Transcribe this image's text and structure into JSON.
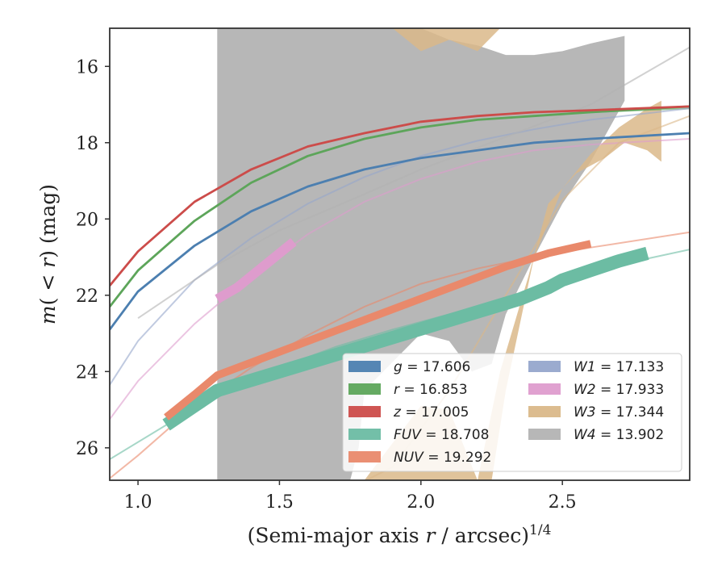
{
  "chart_data": {
    "type": "line",
    "title": "",
    "xlabel": "(Semi-major axis r / arcsec)",
    "xlabel_parts": {
      "pre": "(Semi-major axis ",
      "var": "r",
      "post": " / arcsec)",
      "sup": "1/4"
    },
    "ylabel": "m(< r) (mag)",
    "ylabel_parts": {
      "var": "m",
      "open": "(",
      "mid": " < ",
      "var2": "r",
      "close": ")",
      "unit": " (mag)"
    },
    "xlim": [
      0.9,
      2.95
    ],
    "ylim": [
      26.85,
      15.0
    ],
    "y_inverted": true,
    "xticks": [
      1.0,
      1.5,
      2.0,
      2.5
    ],
    "xtick_labels": [
      "1.0",
      "1.5",
      "2.0",
      "2.5"
    ],
    "yticks": [
      16,
      18,
      20,
      22,
      24,
      26
    ],
    "ytick_labels": [
      "16",
      "18",
      "20",
      "22",
      "24",
      "26"
    ],
    "grid": false,
    "legend_position": "lower-right",
    "series": [
      {
        "band": "g",
        "value": "17.606",
        "color": "#4c7fb0",
        "model": [
          [
            0.9,
            22.9
          ],
          [
            1.0,
            21.9
          ],
          [
            1.2,
            20.7
          ],
          [
            1.4,
            19.8
          ],
          [
            1.6,
            19.15
          ],
          [
            1.8,
            18.7
          ],
          [
            2.0,
            18.4
          ],
          [
            2.2,
            18.2
          ],
          [
            2.4,
            18.0
          ],
          [
            2.6,
            17.9
          ],
          [
            2.95,
            17.75
          ]
        ],
        "data": [
          [
            0.9,
            22.9
          ],
          [
            1.0,
            21.9
          ],
          [
            1.2,
            20.7
          ],
          [
            1.4,
            19.8
          ],
          [
            1.6,
            19.15
          ],
          [
            1.8,
            18.7
          ],
          [
            2.0,
            18.4
          ],
          [
            2.2,
            18.2
          ],
          [
            2.4,
            18.0
          ],
          [
            2.6,
            17.9
          ],
          [
            2.95,
            17.75
          ]
        ],
        "data_width": 0.06
      },
      {
        "band": "r",
        "value": "16.853",
        "color": "#5da55a",
        "model": [
          [
            0.9,
            22.3
          ],
          [
            1.0,
            21.35
          ],
          [
            1.2,
            20.05
          ],
          [
            1.4,
            19.05
          ],
          [
            1.6,
            18.35
          ],
          [
            1.8,
            17.9
          ],
          [
            2.0,
            17.6
          ],
          [
            2.2,
            17.4
          ],
          [
            2.4,
            17.3
          ],
          [
            2.6,
            17.2
          ],
          [
            2.95,
            17.1
          ]
        ],
        "data": [
          [
            0.9,
            22.3
          ],
          [
            1.0,
            21.35
          ],
          [
            1.2,
            20.05
          ],
          [
            1.4,
            19.05
          ],
          [
            1.6,
            18.35
          ],
          [
            1.8,
            17.9
          ],
          [
            2.0,
            17.6
          ],
          [
            2.2,
            17.4
          ],
          [
            2.4,
            17.3
          ],
          [
            2.6,
            17.2
          ],
          [
            2.95,
            17.05
          ]
        ],
        "data_width": 0.06
      },
      {
        "band": "z",
        "value": "17.005",
        "color": "#cc4c4a",
        "model": [
          [
            0.9,
            21.75
          ],
          [
            1.0,
            20.85
          ],
          [
            1.2,
            19.55
          ],
          [
            1.4,
            18.7
          ],
          [
            1.6,
            18.1
          ],
          [
            1.8,
            17.75
          ],
          [
            2.0,
            17.45
          ],
          [
            2.2,
            17.3
          ],
          [
            2.4,
            17.2
          ],
          [
            2.6,
            17.15
          ],
          [
            2.95,
            17.05
          ]
        ],
        "data": [
          [
            0.9,
            21.75
          ],
          [
            1.0,
            20.85
          ],
          [
            1.2,
            19.55
          ],
          [
            1.4,
            18.7
          ],
          [
            1.6,
            18.1
          ],
          [
            1.8,
            17.75
          ],
          [
            2.0,
            17.45
          ],
          [
            2.2,
            17.3
          ],
          [
            2.4,
            17.2
          ],
          [
            2.6,
            17.15
          ],
          [
            2.95,
            17.05
          ]
        ],
        "data_width": 0.06
      },
      {
        "band": "FUV",
        "value": "18.708",
        "color": "#6cbca3",
        "model": [
          [
            0.9,
            26.3
          ],
          [
            1.1,
            25.4
          ],
          [
            1.3,
            24.6
          ],
          [
            1.5,
            23.9
          ],
          [
            1.7,
            23.35
          ],
          [
            1.9,
            22.9
          ],
          [
            2.1,
            22.5
          ],
          [
            2.3,
            22.1
          ],
          [
            2.5,
            21.6
          ],
          [
            2.7,
            21.2
          ],
          [
            2.95,
            20.8
          ]
        ],
        "data": [
          [
            1.1,
            25.4
          ],
          [
            1.2,
            24.9
          ],
          [
            1.28,
            24.5
          ],
          [
            2.35,
            22.1
          ],
          [
            2.45,
            21.8
          ],
          [
            2.5,
            21.6
          ],
          [
            2.6,
            21.35
          ],
          [
            2.7,
            21.1
          ],
          [
            2.8,
            20.9
          ]
        ],
        "data_width": 0.35
      },
      {
        "band": "NUV",
        "value": "19.292",
        "color": "#e9896b",
        "model": [
          [
            0.9,
            26.8
          ],
          [
            1.0,
            26.2
          ],
          [
            1.2,
            24.9
          ],
          [
            1.4,
            23.9
          ],
          [
            1.6,
            23.05
          ],
          [
            1.8,
            22.3
          ],
          [
            2.0,
            21.7
          ],
          [
            2.2,
            21.3
          ],
          [
            2.4,
            21.0
          ],
          [
            2.6,
            20.75
          ],
          [
            2.95,
            20.35
          ]
        ],
        "data": [
          [
            1.1,
            25.2
          ],
          [
            1.2,
            24.6
          ],
          [
            1.28,
            24.1
          ],
          [
            2.3,
            21.25
          ],
          [
            2.45,
            20.9
          ],
          [
            2.6,
            20.65
          ]
        ],
        "data_width": 0.2
      },
      {
        "band": "W1",
        "value": "17.133",
        "color": "#96a7cc",
        "model": [
          [
            0.9,
            24.35
          ],
          [
            1.0,
            23.2
          ],
          [
            1.2,
            21.6
          ],
          [
            1.4,
            20.5
          ],
          [
            1.6,
            19.6
          ],
          [
            1.8,
            18.9
          ],
          [
            2.0,
            18.35
          ],
          [
            2.2,
            17.95
          ],
          [
            2.4,
            17.65
          ],
          [
            2.6,
            17.4
          ],
          [
            2.95,
            17.1
          ]
        ],
        "data": [],
        "data_width": 0
      },
      {
        "band": "W2",
        "value": "17.933",
        "color": "#de9ccd",
        "model": [
          [
            0.9,
            25.25
          ],
          [
            1.0,
            24.25
          ],
          [
            1.2,
            22.75
          ],
          [
            1.4,
            21.5
          ],
          [
            1.6,
            20.4
          ],
          [
            1.8,
            19.55
          ],
          [
            2.0,
            18.95
          ],
          [
            2.2,
            18.5
          ],
          [
            2.4,
            18.2
          ],
          [
            2.6,
            18.05
          ],
          [
            2.95,
            17.9
          ]
        ],
        "data": [
          [
            1.28,
            22.1
          ],
          [
            1.35,
            21.8
          ],
          [
            1.45,
            21.2
          ],
          [
            1.55,
            20.6
          ]
        ],
        "data_width": 0.25
      },
      {
        "band": "W3",
        "value": "17.344",
        "color": "#dab889",
        "model": [
          [
            0.9,
            29.0
          ],
          [
            1.5,
            28.0
          ],
          [
            1.9,
            26.5
          ],
          [
            2.1,
            24.5
          ],
          [
            2.3,
            22.0
          ],
          [
            2.5,
            19.5
          ],
          [
            2.7,
            18.0
          ],
          [
            2.95,
            17.3
          ]
        ],
        "data_lower": [
          [
            1.8,
            26.85
          ],
          [
            2.0,
            24.9
          ],
          [
            2.1,
            25.0
          ],
          [
            2.2,
            26.85
          ]
        ],
        "data_upper": [
          [
            2.25,
            26.85
          ],
          [
            2.3,
            24.5
          ],
          [
            2.4,
            21.0
          ],
          [
            2.5,
            19.2
          ],
          [
            2.6,
            18.3
          ],
          [
            2.7,
            17.6
          ],
          [
            2.8,
            17.1
          ],
          [
            2.85,
            16.9
          ]
        ],
        "shade_lower": [
          [
            2.2,
            26.85
          ],
          [
            2.28,
            24.0
          ],
          [
            2.38,
            21.5
          ],
          [
            2.45,
            19.6
          ],
          [
            2.55,
            18.8
          ],
          [
            2.65,
            18.4
          ],
          [
            2.72,
            18.0
          ],
          [
            2.8,
            18.2
          ],
          [
            2.85,
            18.5
          ]
        ]
      },
      {
        "band": "W4",
        "value": "13.902",
        "color": "#b3b3b3",
        "model": [
          [
            1.0,
            22.6
          ],
          [
            1.28,
            21.2
          ],
          [
            1.5,
            20.3
          ],
          [
            1.8,
            19.35
          ],
          [
            2.0,
            18.7
          ],
          [
            2.3,
            17.85
          ],
          [
            2.6,
            17.0
          ],
          [
            2.95,
            15.5
          ]
        ],
        "upper": [
          [
            1.28,
            15.0
          ],
          [
            1.75,
            15.0
          ],
          [
            2.0,
            15.0
          ],
          [
            2.1,
            15.3
          ],
          [
            2.2,
            15.45
          ],
          [
            2.3,
            15.7
          ],
          [
            2.4,
            15.7
          ],
          [
            2.5,
            15.6
          ],
          [
            2.6,
            15.4
          ],
          [
            2.72,
            15.2
          ]
        ],
        "lower": [
          [
            1.28,
            26.85
          ],
          [
            1.75,
            26.85
          ],
          [
            1.78,
            26.0
          ],
          [
            1.8,
            24.5
          ],
          [
            1.88,
            23.9
          ],
          [
            2.0,
            23.0
          ],
          [
            2.1,
            23.2
          ],
          [
            2.18,
            24.0
          ],
          [
            2.25,
            23.8
          ],
          [
            2.3,
            22.5
          ],
          [
            2.4,
            21.0
          ],
          [
            2.5,
            19.6
          ],
          [
            2.6,
            18.5
          ],
          [
            2.72,
            16.9
          ]
        ]
      }
    ]
  }
}
